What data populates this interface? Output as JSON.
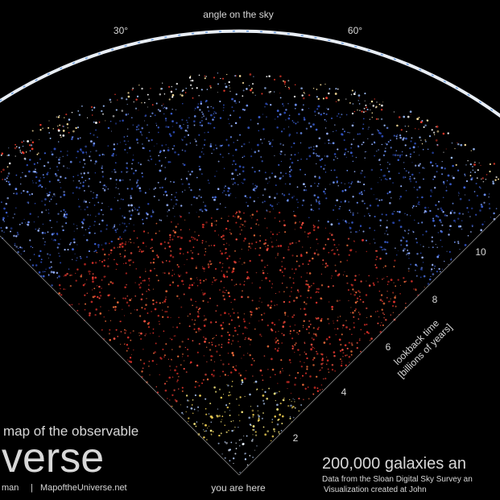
{
  "sky_axis": {
    "title": "angle on the sky",
    "ticks": [
      "30°",
      "60°"
    ]
  },
  "time_axis": {
    "title": "lookback time",
    "subtitle": "[billions of years]",
    "ticks": [
      "2",
      "4",
      "6",
      "8",
      "10"
    ]
  },
  "marker": "you are here",
  "logo": {
    "line1": "map of the observable",
    "line2": "verse",
    "credit": "man",
    "separator": "|",
    "url": "MapoftheUniverse.net"
  },
  "caption": {
    "headline": "200,000 galaxies an",
    "line1": "Data from the Sloan Digital Sky Survey an",
    "line2": "Visualization created at John"
  }
}
